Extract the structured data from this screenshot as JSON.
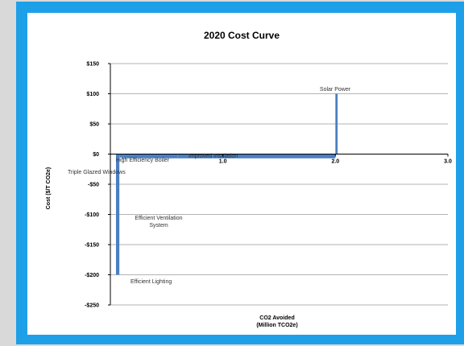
{
  "chart_data": {
    "type": "bar",
    "title": "2020 Cost Curve",
    "xlabel_lines": [
      "CO2 Avoided",
      "(Million TCO2e)"
    ],
    "ylabel": "Cost ($/T CO2e)",
    "xlim": [
      0,
      3.0
    ],
    "ylim": [
      -250,
      150
    ],
    "x_ticks": [
      1.0,
      2.0,
      3.0
    ],
    "x_tick_labels": [
      "1.0",
      "2.0",
      "3.0"
    ],
    "y_ticks": [
      150,
      100,
      50,
      0,
      -50,
      -100,
      -150,
      -200,
      -250
    ],
    "y_tick_labels": [
      "$150",
      "$100",
      "$50",
      "$0",
      "-$50",
      "-$100",
      "-$150",
      "-$200",
      "-$250"
    ],
    "grid": true,
    "bar_color": "#4a7fc1",
    "measures": [
      {
        "label": "Efficient Lighting",
        "x_start": 0.05,
        "x_end": 0.08,
        "cost": -200
      },
      {
        "label": "Triple Glazed Windows",
        "x_start": 0.08,
        "x_end": 0.1,
        "cost": -5
      },
      {
        "label": "Efficient Ventilation System",
        "x_start": 0.1,
        "x_end": 0.12,
        "cost": -8
      },
      {
        "label": "High Efficiency Boiler",
        "x_start": 0.12,
        "x_end": 0.6,
        "cost": -7
      },
      {
        "label": "Improved Insulation",
        "x_start": 0.6,
        "x_end": 2.0,
        "cost": -7
      },
      {
        "label": "Solar Power",
        "x_start": 2.0,
        "x_end": 2.02,
        "cost": 100
      }
    ]
  }
}
